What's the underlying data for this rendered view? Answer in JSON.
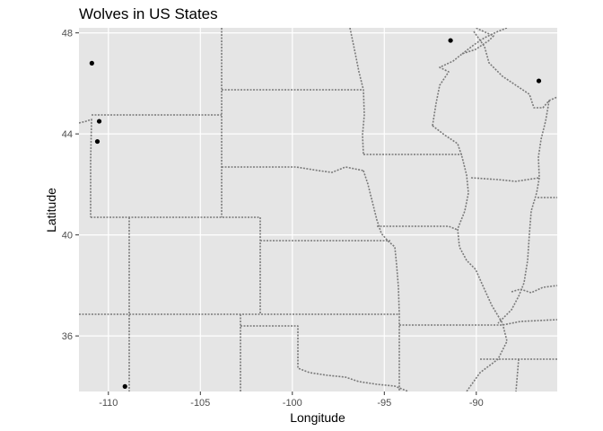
{
  "chart_data": {
    "type": "scatter",
    "title": "Wolves in US States",
    "xlabel": "Longitude",
    "ylabel": "Latitude",
    "xlim": [
      -111.6,
      -85.6
    ],
    "ylim": [
      33.8,
      48.2
    ],
    "x_ticks": [
      -110,
      -105,
      -100,
      -95,
      -90
    ],
    "x_tick_labels": [
      "-110",
      "-105",
      "-100",
      "-95",
      "-90"
    ],
    "y_ticks": [
      36,
      40,
      44,
      48
    ],
    "y_tick_labels": [
      "36",
      "40",
      "44",
      "48"
    ],
    "grid": true,
    "background_color": "#e5e5e5",
    "point_color": "#000000",
    "state_border_style": "dotted grey",
    "points": [
      {
        "x": -110.9,
        "y": 46.8
      },
      {
        "x": -110.5,
        "y": 44.5
      },
      {
        "x": -110.6,
        "y": 43.7
      },
      {
        "x": -109.1,
        "y": 34.0
      },
      {
        "x": -91.4,
        "y": 47.7
      },
      {
        "x": -86.6,
        "y": 46.1
      }
    ]
  }
}
